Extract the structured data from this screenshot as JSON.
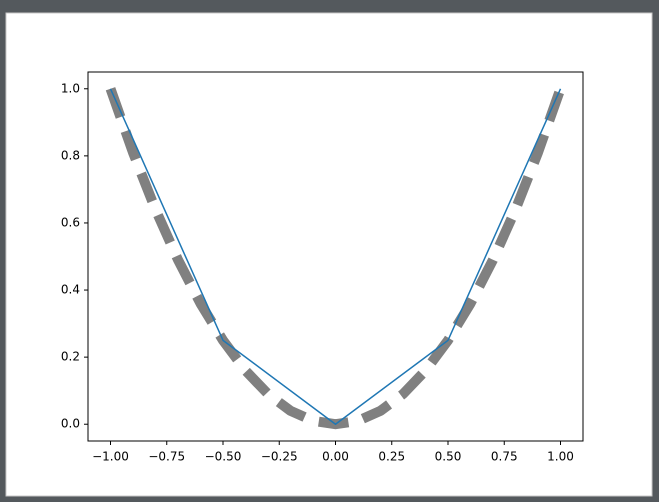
{
  "chart_data": {
    "type": "line",
    "series": [
      {
        "color": "#1f77b4",
        "width": 1.5,
        "dash": null,
        "x": [
          -1.0,
          -0.5,
          0.0,
          0.5,
          1.0
        ],
        "values": [
          1.0,
          0.25,
          0.0,
          0.25,
          1.0
        ]
      },
      {
        "color": "#808080",
        "width": 10,
        "dash": [
          30,
          15
        ],
        "x": [
          -1.0,
          -0.9,
          -0.8,
          -0.7,
          -0.6,
          -0.5,
          -0.4,
          -0.3,
          -0.2,
          -0.1,
          0.0,
          0.1,
          0.2,
          0.3,
          0.4,
          0.5,
          0.6,
          0.7,
          0.8,
          0.9,
          1.0
        ],
        "values": [
          1.0,
          0.81,
          0.64,
          0.49,
          0.36,
          0.25,
          0.16,
          0.09,
          0.04,
          0.01,
          0.0,
          0.01,
          0.04,
          0.09,
          0.16,
          0.25,
          0.36,
          0.49,
          0.64,
          0.81,
          1.0
        ]
      }
    ],
    "xlim": [
      -1.1,
      1.1
    ],
    "ylim": [
      -0.05,
      1.05
    ],
    "xticks": [
      {
        "value": -1.0,
        "label": "−1.00"
      },
      {
        "value": -0.75,
        "label": "−0.75"
      },
      {
        "value": -0.5,
        "label": "−0.50"
      },
      {
        "value": -0.25,
        "label": "−0.25"
      },
      {
        "value": 0.0,
        "label": "0.00"
      },
      {
        "value": 0.25,
        "label": "0.25"
      },
      {
        "value": 0.5,
        "label": "0.50"
      },
      {
        "value": 0.75,
        "label": "0.75"
      },
      {
        "value": 1.0,
        "label": "1.00"
      }
    ],
    "yticks": [
      {
        "value": 0.0,
        "label": "0.0"
      },
      {
        "value": 0.2,
        "label": "0.2"
      },
      {
        "value": 0.4,
        "label": "0.4"
      },
      {
        "value": 0.6,
        "label": "0.6"
      },
      {
        "value": 0.8,
        "label": "0.8"
      },
      {
        "value": 1.0,
        "label": "1.0"
      }
    ],
    "grid": false
  }
}
